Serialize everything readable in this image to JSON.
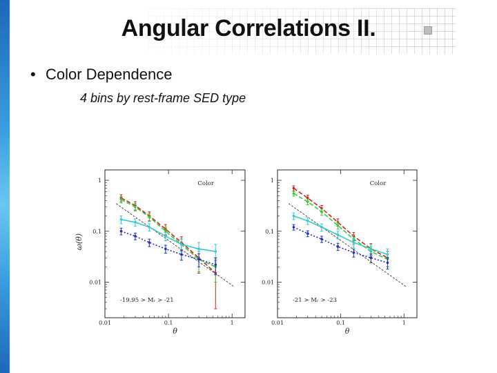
{
  "slide": {
    "title": "Angular Correlations II.",
    "bullet_marker": "•",
    "bullet": "Color Dependence",
    "subtitle": "4 bins by rest-frame SED type"
  },
  "colors": {
    "red": "#cc2222",
    "green": "#33cc33",
    "cyan": "#33cccc",
    "blue": "#1f2fbf",
    "black": "#111111"
  },
  "chart_data": [
    {
      "type": "line",
      "xscale": "log",
      "yscale": "log",
      "xlim": [
        0.01,
        1.6
      ],
      "ylim": [
        0.002,
        1.6
      ],
      "x_ticks": [
        0.01,
        0.1,
        1
      ],
      "x_tick_labels": [
        "0.01",
        "0.1",
        "1"
      ],
      "y_ticks": [
        0.01,
        0.1,
        1
      ],
      "y_tick_labels": [
        "0.01",
        "0.1",
        "1"
      ],
      "xlabel": "θ",
      "ylabel": "ω(θ)",
      "corner_label": "Color",
      "annotation": "-19.95 > Mᵣ > -21",
      "reference_line": {
        "x": [
          0.015,
          1.1
        ],
        "y": [
          0.35,
          0.008
        ]
      },
      "series": [
        {
          "color": "red",
          "line": "dashed",
          "x": [
            0.018,
            0.03,
            0.05,
            0.09,
            0.16,
            0.3,
            0.55
          ],
          "y": [
            0.45,
            0.32,
            0.2,
            0.11,
            0.06,
            0.03,
            0.015
          ],
          "err": [
            0.07,
            0.06,
            0.04,
            0.025,
            0.018,
            0.015,
            0.012
          ]
        },
        {
          "color": "green",
          "line": "dashed",
          "x": [
            0.018,
            0.03,
            0.05,
            0.09,
            0.16,
            0.3,
            0.55
          ],
          "y": [
            0.42,
            0.3,
            0.19,
            0.1,
            0.055,
            0.028,
            0.02
          ],
          "err": [
            0.06,
            0.05,
            0.035,
            0.02,
            0.015,
            0.012,
            0.01
          ]
        },
        {
          "color": "cyan",
          "line": "solid",
          "x": [
            0.018,
            0.03,
            0.05,
            0.09,
            0.16,
            0.3,
            0.55
          ],
          "y": [
            0.17,
            0.15,
            0.12,
            0.08,
            0.055,
            0.045,
            0.04
          ],
          "err": [
            0.03,
            0.025,
            0.02,
            0.015,
            0.015,
            0.015,
            0.015
          ]
        },
        {
          "color": "blue",
          "line": "dotted",
          "x": [
            0.018,
            0.03,
            0.05,
            0.09,
            0.16,
            0.3,
            0.55
          ],
          "y": [
            0.1,
            0.08,
            0.06,
            0.045,
            0.035,
            0.028,
            0.022
          ],
          "err": [
            0.015,
            0.012,
            0.01,
            0.008,
            0.008,
            0.008,
            0.008
          ]
        }
      ]
    },
    {
      "type": "line",
      "xscale": "log",
      "yscale": "log",
      "xlim": [
        0.01,
        1.6
      ],
      "ylim": [
        0.002,
        1.6
      ],
      "x_ticks": [
        0.01,
        0.1,
        1
      ],
      "x_tick_labels": [
        "0.01",
        "0.1",
        "1"
      ],
      "y_ticks": [
        0.01,
        0.1,
        1
      ],
      "y_tick_labels": [
        "0.01",
        "0.1",
        "1"
      ],
      "xlabel": "θ",
      "ylabel": "",
      "corner_label": "Color",
      "annotation": "-21 > Mᵣ > -23",
      "reference_line": {
        "x": [
          0.015,
          1.1
        ],
        "y": [
          0.35,
          0.008
        ]
      },
      "series": [
        {
          "color": "red",
          "line": "dashed",
          "x": [
            0.018,
            0.03,
            0.05,
            0.09,
            0.16,
            0.3,
            0.55
          ],
          "y": [
            0.7,
            0.45,
            0.28,
            0.15,
            0.08,
            0.045,
            0.03
          ],
          "err": [
            0.08,
            0.06,
            0.04,
            0.025,
            0.015,
            0.012,
            0.01
          ]
        },
        {
          "color": "green",
          "line": "dashed",
          "x": [
            0.018,
            0.03,
            0.05,
            0.09,
            0.16,
            0.3,
            0.55
          ],
          "y": [
            0.55,
            0.38,
            0.24,
            0.13,
            0.07,
            0.04,
            0.028
          ],
          "err": [
            0.06,
            0.05,
            0.035,
            0.02,
            0.015,
            0.01,
            0.008
          ]
        },
        {
          "color": "cyan",
          "line": "solid",
          "x": [
            0.018,
            0.03,
            0.05,
            0.09,
            0.16,
            0.3,
            0.55
          ],
          "y": [
            0.2,
            0.16,
            0.12,
            0.085,
            0.06,
            0.045,
            0.035
          ],
          "err": [
            0.03,
            0.025,
            0.02,
            0.015,
            0.012,
            0.01,
            0.01
          ]
        },
        {
          "color": "blue",
          "line": "dotted",
          "x": [
            0.018,
            0.03,
            0.05,
            0.09,
            0.16,
            0.3,
            0.55
          ],
          "y": [
            0.12,
            0.09,
            0.07,
            0.05,
            0.038,
            0.03,
            0.024
          ],
          "err": [
            0.015,
            0.012,
            0.01,
            0.008,
            0.007,
            0.006,
            0.006
          ]
        }
      ]
    }
  ]
}
